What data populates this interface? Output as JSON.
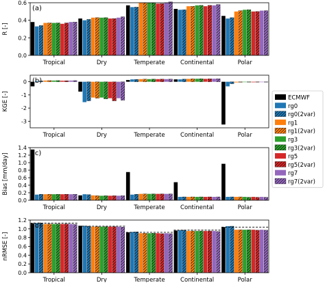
{
  "colors": {
    "ECMWF": "#000000",
    "rg0": "#1f77b4",
    "rg1": "#ff7f0e",
    "rg3": "#2ca02c",
    "rg5": "#d62728",
    "rg7": "#9467bd"
  },
  "legend": {
    "placement": "right",
    "entries": [
      {
        "label": "ECMWF",
        "color": "#000000",
        "hatch": false
      },
      {
        "label": "rg0",
        "color": "#1f77b4",
        "hatch": false
      },
      {
        "label": "rg0(2var)",
        "color": "#1f77b4",
        "hatch": true
      },
      {
        "label": "rg1",
        "color": "#ff7f0e",
        "hatch": false
      },
      {
        "label": "rg1(2var)",
        "color": "#ff7f0e",
        "hatch": true
      },
      {
        "label": "rg3",
        "color": "#2ca02c",
        "hatch": false
      },
      {
        "label": "rg3(2var)",
        "color": "#2ca02c",
        "hatch": true
      },
      {
        "label": "rg5",
        "color": "#d62728",
        "hatch": false
      },
      {
        "label": "rg5(2var)",
        "color": "#d62728",
        "hatch": true
      },
      {
        "label": "rg7",
        "color": "#9467bd",
        "hatch": false
      },
      {
        "label": "rg7(2var)",
        "color": "#9467bd",
        "hatch": true
      }
    ]
  },
  "chart_data": [
    {
      "type": "bar",
      "panel": "(a)",
      "ylabel": "R [-]",
      "ylim": [
        0,
        0.6
      ],
      "yticks": [
        0.0,
        0.2,
        0.4,
        0.6
      ],
      "categories": [
        "Tropical",
        "Dry",
        "Temperate",
        "Continental",
        "Polar"
      ],
      "series": [
        {
          "name": "ECMWF",
          "values": [
            0.38,
            0.42,
            0.57,
            0.53,
            0.45
          ]
        },
        {
          "name": "rg0",
          "values": [
            0.33,
            0.4,
            0.55,
            0.52,
            0.42
          ]
        },
        {
          "name": "rg0(2var)",
          "values": [
            0.34,
            0.41,
            0.55,
            0.52,
            0.43
          ]
        },
        {
          "name": "rg1",
          "values": [
            0.37,
            0.43,
            0.6,
            0.56,
            0.5
          ]
        },
        {
          "name": "rg1(2var)",
          "values": [
            0.37,
            0.43,
            0.6,
            0.56,
            0.51
          ]
        },
        {
          "name": "rg3",
          "values": [
            0.37,
            0.43,
            0.6,
            0.57,
            0.52
          ]
        },
        {
          "name": "rg3(2var)",
          "values": [
            0.37,
            0.43,
            0.6,
            0.57,
            0.52
          ]
        },
        {
          "name": "rg5",
          "values": [
            0.36,
            0.42,
            0.59,
            0.56,
            0.5
          ]
        },
        {
          "name": "rg5(2var)",
          "values": [
            0.37,
            0.42,
            0.59,
            0.57,
            0.5
          ]
        },
        {
          "name": "rg7",
          "values": [
            0.38,
            0.43,
            0.6,
            0.57,
            0.51
          ]
        },
        {
          "name": "rg7(2var)",
          "values": [
            0.38,
            0.44,
            0.61,
            0.58,
            0.51
          ]
        }
      ]
    },
    {
      "type": "bar",
      "panel": "(b)",
      "ylabel": "KGE [-]",
      "ylim": [
        -3.5,
        0.5
      ],
      "yticks": [
        -3,
        -2,
        -1,
        0
      ],
      "categories": [
        "Tropical",
        "Dry",
        "Temperate",
        "Continental",
        "Polar"
      ],
      "series": [
        {
          "name": "ECMWF",
          "values": [
            -0.35,
            -0.75,
            0.13,
            0.18,
            -3.25
          ]
        },
        {
          "name": "rg0",
          "values": [
            0.05,
            -1.55,
            0.18,
            0.18,
            -0.35
          ]
        },
        {
          "name": "rg0(2var)",
          "values": [
            0.06,
            -1.45,
            0.18,
            0.2,
            -0.15
          ]
        },
        {
          "name": "rg1",
          "values": [
            0.09,
            -1.2,
            0.2,
            0.22,
            -0.05
          ]
        },
        {
          "name": "rg1(2var)",
          "values": [
            0.09,
            -1.25,
            0.2,
            0.22,
            -0.04
          ]
        },
        {
          "name": "rg3",
          "values": [
            0.09,
            -1.2,
            0.2,
            0.23,
            -0.03
          ]
        },
        {
          "name": "rg3(2var)",
          "values": [
            0.09,
            -1.3,
            0.2,
            0.23,
            -0.03
          ]
        },
        {
          "name": "rg5",
          "values": [
            0.08,
            -1.25,
            0.2,
            0.22,
            -0.04
          ]
        },
        {
          "name": "rg5(2var)",
          "values": [
            0.08,
            -1.45,
            0.2,
            0.22,
            -0.03
          ]
        },
        {
          "name": "rg7",
          "values": [
            0.09,
            -1.25,
            0.2,
            0.23,
            -0.03
          ]
        },
        {
          "name": "rg7(2var)",
          "values": [
            0.09,
            -1.4,
            0.2,
            0.23,
            -0.03
          ]
        }
      ]
    },
    {
      "type": "bar",
      "panel": "(c)",
      "ylabel": "Bias [mm/day]",
      "ylim": [
        0,
        1.4
      ],
      "yticks": [
        0.0,
        0.2,
        0.4,
        0.6,
        0.8,
        1.0,
        1.2,
        1.4
      ],
      "categories": [
        "Tropical",
        "Dry",
        "Temperate",
        "Continental",
        "Polar"
      ],
      "series": [
        {
          "name": "ECMWF",
          "values": [
            1.35,
            0.13,
            0.75,
            0.48,
            0.97
          ]
        },
        {
          "name": "rg0",
          "values": [
            0.15,
            0.16,
            0.15,
            0.09,
            0.09
          ]
        },
        {
          "name": "rg0(2var)",
          "values": [
            0.16,
            0.15,
            0.16,
            0.09,
            0.09
          ]
        },
        {
          "name": "rg1",
          "values": [
            0.16,
            0.13,
            0.17,
            0.09,
            0.09
          ]
        },
        {
          "name": "rg1(2var)",
          "values": [
            0.16,
            0.12,
            0.17,
            0.09,
            0.09
          ]
        },
        {
          "name": "rg3",
          "values": [
            0.16,
            0.12,
            0.17,
            0.09,
            0.09
          ]
        },
        {
          "name": "rg3(2var)",
          "values": [
            0.16,
            0.12,
            0.17,
            0.09,
            0.08
          ]
        },
        {
          "name": "rg5",
          "values": [
            0.16,
            0.12,
            0.17,
            0.09,
            0.09
          ]
        },
        {
          "name": "rg5(2var)",
          "values": [
            0.16,
            0.12,
            0.17,
            0.09,
            0.08
          ]
        },
        {
          "name": "rg7",
          "values": [
            0.16,
            0.12,
            0.17,
            0.09,
            0.09
          ]
        },
        {
          "name": "rg7(2var)",
          "values": [
            0.16,
            0.12,
            0.17,
            0.09,
            0.08
          ]
        }
      ]
    },
    {
      "type": "bar",
      "panel": "(d)",
      "ylabel": "nRMSE [-]",
      "ylim": [
        0,
        1.2
      ],
      "yticks": [
        0.0,
        0.2,
        0.4,
        0.6,
        0.8,
        1.0,
        1.2
      ],
      "reference_line": {
        "style": "dashed",
        "color": "#000000",
        "values": [
          1.13,
          1.06,
          0.92,
          0.97,
          1.04
        ]
      },
      "categories": [
        "Tropical",
        "Dry",
        "Temperate",
        "Continental",
        "Polar"
      ],
      "series": [
        {
          "name": "ECMWF",
          "values": [
            1.12,
            1.07,
            0.92,
            0.96,
            1.04
          ]
        },
        {
          "name": "rg0",
          "values": [
            1.13,
            1.07,
            0.93,
            0.97,
            1.06
          ]
        },
        {
          "name": "rg0(2var)",
          "values": [
            1.13,
            1.06,
            0.93,
            0.97,
            1.06
          ]
        },
        {
          "name": "rg1",
          "values": [
            1.11,
            1.05,
            0.9,
            0.95,
            0.98
          ]
        },
        {
          "name": "rg1(2var)",
          "values": [
            1.11,
            1.05,
            0.9,
            0.95,
            0.98
          ]
        },
        {
          "name": "rg3",
          "values": [
            1.11,
            1.05,
            0.9,
            0.95,
            0.98
          ]
        },
        {
          "name": "rg3(2var)",
          "values": [
            1.11,
            1.05,
            0.9,
            0.95,
            0.98
          ]
        },
        {
          "name": "rg5",
          "values": [
            1.11,
            1.05,
            0.9,
            0.95,
            0.98
          ]
        },
        {
          "name": "rg5(2var)",
          "values": [
            1.11,
            1.05,
            0.89,
            0.95,
            0.97
          ]
        },
        {
          "name": "rg7",
          "values": [
            1.11,
            1.05,
            0.9,
            0.95,
            0.98
          ]
        },
        {
          "name": "rg7(2var)",
          "values": [
            1.1,
            1.04,
            0.89,
            0.94,
            0.97
          ]
        }
      ]
    }
  ]
}
